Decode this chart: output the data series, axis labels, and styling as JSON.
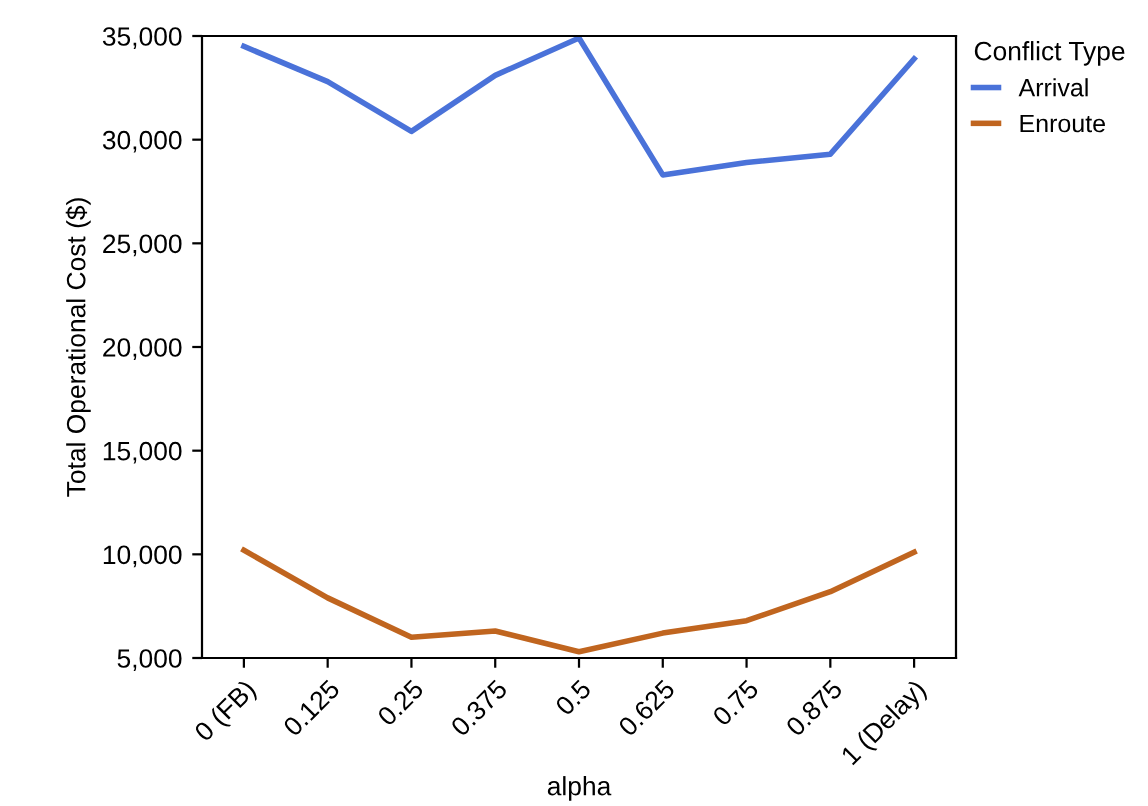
{
  "chart_data": {
    "type": "line",
    "xlabel": "alpha",
    "ylabel": "Total Operational Cost ($)",
    "legend_title": "Conflict Type",
    "categories": [
      "0 (FB)",
      "0.125",
      "0.25",
      "0.375",
      "0.5",
      "0.625",
      "0.75",
      "0.875",
      "1 (Delay)"
    ],
    "series": [
      {
        "name": "Arrival",
        "color": "#4a72d9",
        "values": [
          34500,
          32800,
          30400,
          33100,
          34900,
          28300,
          28900,
          29300,
          33900
        ]
      },
      {
        "name": "Enroute",
        "color": "#c0651f",
        "values": [
          10200,
          7900,
          6000,
          6300,
          5300,
          6200,
          6800,
          8200,
          10100
        ]
      }
    ],
    "ylim": [
      5000,
      35000
    ],
    "yticks": [
      {
        "value": 5000,
        "label": "5,000"
      },
      {
        "value": 10000,
        "label": "10,000"
      },
      {
        "value": 15000,
        "label": "15,000"
      },
      {
        "value": 20000,
        "label": "20,000"
      },
      {
        "value": 25000,
        "label": "25,000"
      },
      {
        "value": 30000,
        "label": "30,000"
      },
      {
        "value": 35000,
        "label": "35,000"
      }
    ],
    "grid": false,
    "legend": "top right",
    "marker": "none",
    "line_style": "solid"
  }
}
